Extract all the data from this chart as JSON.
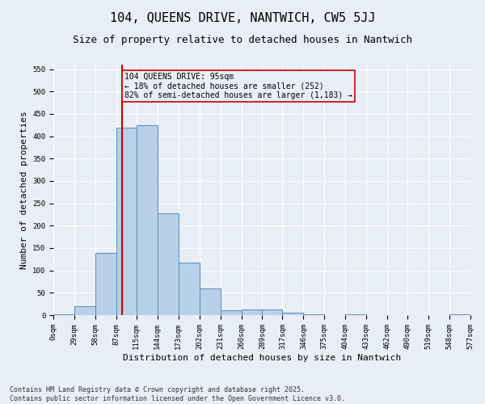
{
  "title": "104, QUEENS DRIVE, NANTWICH, CW5 5JJ",
  "subtitle": "Size of property relative to detached houses in Nantwich",
  "xlabel": "Distribution of detached houses by size in Nantwich",
  "ylabel": "Number of detached properties",
  "bar_color": "#b8d0e8",
  "bar_edge_color": "#5b8db8",
  "background_color": "#e8eef5",
  "grid_color": "#ffffff",
  "bin_edges": [
    0,
    29,
    58,
    87,
    115,
    144,
    173,
    202,
    231,
    260,
    289,
    317,
    346,
    375,
    404,
    433,
    462,
    490,
    519,
    548,
    577
  ],
  "bar_heights": [
    2,
    20,
    140,
    420,
    425,
    228,
    117,
    59,
    11,
    13,
    13,
    6,
    2,
    0,
    1,
    0,
    0,
    0,
    0,
    1
  ],
  "tick_labels": [
    "0sqm",
    "29sqm",
    "58sqm",
    "87sqm",
    "115sqm",
    "144sqm",
    "173sqm",
    "202sqm",
    "231sqm",
    "260sqm",
    "289sqm",
    "317sqm",
    "346sqm",
    "375sqm",
    "404sqm",
    "433sqm",
    "462sqm",
    "490sqm",
    "519sqm",
    "548sqm",
    "577sqm"
  ],
  "property_size": 95,
  "vline_color": "#cc0000",
  "annotation_text": "104 QUEENS DRIVE: 95sqm\n← 18% of detached houses are smaller (252)\n82% of semi-detached houses are larger (1,183) →",
  "annotation_box_color": "#cc0000",
  "ylim": [
    0,
    560
  ],
  "yticks": [
    0,
    50,
    100,
    150,
    200,
    250,
    300,
    350,
    400,
    450,
    500,
    550
  ],
  "footer_text": "Contains HM Land Registry data © Crown copyright and database right 2025.\nContains public sector information licensed under the Open Government Licence v3.0.",
  "title_fontsize": 11,
  "subtitle_fontsize": 9,
  "axis_label_fontsize": 8,
  "tick_fontsize": 6.5,
  "annotation_fontsize": 7,
  "footer_fontsize": 6
}
